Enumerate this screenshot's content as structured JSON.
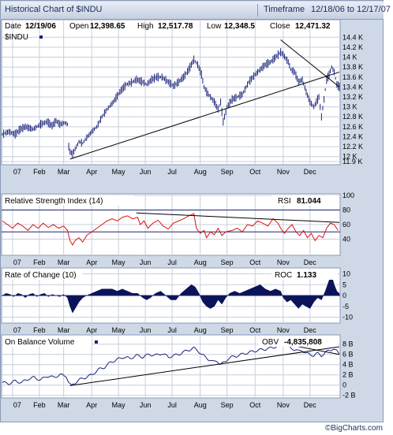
{
  "header": {
    "title": "Historical Chart of $INDU",
    "timeframe_label": "Timeframe",
    "timeframe_value": "12/18/06 to 12/17/07"
  },
  "quote": {
    "date_label": "Date",
    "date": "12/19/06",
    "open_label": "Open",
    "open": "12,398.65",
    "high_label": "High",
    "high": "12,517.78",
    "low_label": "Low",
    "low": "12,348.5",
    "close_label": "Close",
    "close": "12,471.32"
  },
  "credit": "©BigCharts.com",
  "colors": {
    "price": "#1a2378",
    "rsi": "#dd1111",
    "fill": "#0b1458",
    "obv": "#1a2378",
    "trend": "#000000",
    "grid": "#c7cedb",
    "panel_bg": "#ffffff",
    "frame": "#cfd8e6"
  },
  "chart_data": [
    {
      "type": "ohlc",
      "title": "$INDU",
      "ylim": [
        11900,
        14500
      ],
      "y_ticks": [
        "14.4 K",
        "14.2 K",
        "14 K",
        "13.8 K",
        "13.6 K",
        "13.4 K",
        "13.2 K",
        "13 K",
        "12.8 K",
        "12.6 K",
        "12.4 K",
        "12.2 K",
        "12 K",
        "11.9 K"
      ],
      "x_ticks": [
        "07",
        "Feb",
        "Mar",
        "Apr",
        "May",
        "Jun",
        "Jul",
        "Aug",
        "Sep",
        "Oct",
        "Nov",
        "Dec"
      ],
      "close_path": [
        [
          0,
          12450
        ],
        [
          5,
          12500
        ],
        [
          10,
          12450
        ],
        [
          14,
          12550
        ],
        [
          18,
          12600
        ],
        [
          24,
          12550
        ],
        [
          30,
          12650
        ],
        [
          35,
          12700
        ],
        [
          39,
          12620
        ],
        [
          42,
          12720
        ],
        [
          45,
          12650
        ],
        [
          49,
          12680
        ],
        [
          51,
          12650
        ],
        [
          52,
          12200
        ],
        [
          53,
          12100
        ],
        [
          55,
          12050
        ],
        [
          57,
          12150
        ],
        [
          60,
          12300
        ],
        [
          63,
          12270
        ],
        [
          66,
          12380
        ],
        [
          70,
          12500
        ],
        [
          74,
          12600
        ],
        [
          78,
          12800
        ],
        [
          82,
          12950
        ],
        [
          87,
          13100
        ],
        [
          92,
          13300
        ],
        [
          97,
          13450
        ],
        [
          102,
          13500
        ],
        [
          105,
          13550
        ],
        [
          110,
          13500
        ],
        [
          113,
          13450
        ],
        [
          117,
          13550
        ],
        [
          121,
          13600
        ],
        [
          125,
          13600
        ],
        [
          130,
          13500
        ],
        [
          134,
          13420
        ],
        [
          138,
          13500
        ],
        [
          142,
          13600
        ],
        [
          146,
          13750
        ],
        [
          150,
          13950
        ],
        [
          153,
          13850
        ],
        [
          156,
          13650
        ],
        [
          158,
          13400
        ],
        [
          160,
          13300
        ],
        [
          163,
          13200
        ],
        [
          166,
          13100
        ],
        [
          169,
          12950
        ],
        [
          171,
          13100
        ],
        [
          173,
          12700
        ],
        [
          176,
          13000
        ],
        [
          180,
          13150
        ],
        [
          184,
          13200
        ],
        [
          188,
          13250
        ],
        [
          193,
          13500
        ],
        [
          198,
          13650
        ],
        [
          202,
          13750
        ],
        [
          206,
          13850
        ],
        [
          210,
          13900
        ],
        [
          214,
          14000
        ],
        [
          218,
          14100
        ],
        [
          220,
          14050
        ],
        [
          224,
          13900
        ],
        [
          226,
          13750
        ],
        [
          229,
          13700
        ],
        [
          232,
          13500
        ],
        [
          235,
          13550
        ],
        [
          238,
          13300
        ],
        [
          241,
          13100
        ],
        [
          244,
          13000
        ],
        [
          248,
          13200
        ],
        [
          250,
          12800
        ],
        [
          252,
          13150
        ],
        [
          254,
          13550
        ],
        [
          256,
          13650
        ],
        [
          258,
          13800
        ],
        [
          260,
          13700
        ],
        [
          262,
          13450
        ],
        [
          264,
          13400
        ]
      ],
      "trendlines": [
        {
          "from": [
            53,
            11950
          ],
          "to": [
            264,
            13700
          ]
        },
        {
          "from": [
            218,
            14350
          ],
          "to": [
            264,
            13400
          ]
        }
      ]
    },
    {
      "type": "line",
      "title": "Relative Strength Index (14)",
      "value_label": "RSI",
      "value": "81.044",
      "ylim": [
        20,
        100
      ],
      "y_ticks": [
        100,
        80,
        60,
        40
      ],
      "reference_lines": [
        80,
        50
      ],
      "points": [
        [
          0,
          65
        ],
        [
          4,
          60
        ],
        [
          8,
          55
        ],
        [
          12,
          62
        ],
        [
          16,
          58
        ],
        [
          20,
          52
        ],
        [
          24,
          60
        ],
        [
          28,
          55
        ],
        [
          32,
          62
        ],
        [
          36,
          56
        ],
        [
          40,
          60
        ],
        [
          44,
          55
        ],
        [
          48,
          58
        ],
        [
          51,
          52
        ],
        [
          53,
          38
        ],
        [
          55,
          32
        ],
        [
          57,
          38
        ],
        [
          60,
          42
        ],
        [
          63,
          36
        ],
        [
          66,
          45
        ],
        [
          70,
          50
        ],
        [
          74,
          55
        ],
        [
          78,
          60
        ],
        [
          82,
          65
        ],
        [
          86,
          68
        ],
        [
          90,
          65
        ],
        [
          94,
          70
        ],
        [
          98,
          72
        ],
        [
          102,
          68
        ],
        [
          106,
          70
        ],
        [
          108,
          60
        ],
        [
          111,
          65
        ],
        [
          114,
          55
        ],
        [
          118,
          62
        ],
        [
          122,
          66
        ],
        [
          126,
          58
        ],
        [
          130,
          54
        ],
        [
          134,
          62
        ],
        [
          138,
          65
        ],
        [
          142,
          68
        ],
        [
          146,
          72
        ],
        [
          150,
          75
        ],
        [
          152,
          55
        ],
        [
          155,
          48
        ],
        [
          158,
          52
        ],
        [
          160,
          42
        ],
        [
          163,
          50
        ],
        [
          166,
          46
        ],
        [
          169,
          55
        ],
        [
          172,
          45
        ],
        [
          175,
          50
        ],
        [
          180,
          52
        ],
        [
          184,
          55
        ],
        [
          188,
          50
        ],
        [
          192,
          60
        ],
        [
          196,
          58
        ],
        [
          200,
          65
        ],
        [
          204,
          62
        ],
        [
          208,
          58
        ],
        [
          212,
          68
        ],
        [
          216,
          62
        ],
        [
          218,
          55
        ],
        [
          221,
          48
        ],
        [
          224,
          55
        ],
        [
          227,
          60
        ],
        [
          230,
          50
        ],
        [
          233,
          45
        ],
        [
          236,
          52
        ],
        [
          239,
          42
        ],
        [
          242,
          48
        ],
        [
          245,
          38
        ],
        [
          248,
          45
        ],
        [
          251,
          42
        ],
        [
          254,
          55
        ],
        [
          257,
          62
        ],
        [
          260,
          60
        ],
        [
          263,
          52
        ]
      ],
      "trendlines": [
        {
          "from": [
            105,
            76
          ],
          "to": [
            264,
            63
          ]
        }
      ]
    },
    {
      "type": "area",
      "title": "Rate of Change (10)",
      "value_label": "ROC",
      "value": "1.133",
      "ylim": [
        -12,
        12
      ],
      "y_ticks": [
        10,
        5,
        0,
        -5,
        -10
      ],
      "points": [
        [
          0,
          0
        ],
        [
          3,
          1
        ],
        [
          6,
          0.5
        ],
        [
          9,
          -0.5
        ],
        [
          12,
          1
        ],
        [
          15,
          0.5
        ],
        [
          18,
          -1
        ],
        [
          21,
          0.5
        ],
        [
          24,
          1
        ],
        [
          27,
          -0.5
        ],
        [
          30,
          0.5
        ],
        [
          33,
          1
        ],
        [
          36,
          -0.5
        ],
        [
          39,
          0.5
        ],
        [
          42,
          0
        ],
        [
          45,
          -0.5
        ],
        [
          48,
          0.5
        ],
        [
          51,
          -1
        ],
        [
          53,
          -5
        ],
        [
          55,
          -8
        ],
        [
          57,
          -6
        ],
        [
          60,
          -3
        ],
        [
          63,
          -1
        ],
        [
          66,
          0
        ],
        [
          70,
          1
        ],
        [
          74,
          2
        ],
        [
          78,
          3
        ],
        [
          82,
          3
        ],
        [
          86,
          3
        ],
        [
          90,
          2
        ],
        [
          94,
          3
        ],
        [
          98,
          2
        ],
        [
          102,
          1
        ],
        [
          106,
          1
        ],
        [
          110,
          -1
        ],
        [
          113,
          -2
        ],
        [
          116,
          -1
        ],
        [
          120,
          1
        ],
        [
          124,
          2
        ],
        [
          128,
          0
        ],
        [
          132,
          -2
        ],
        [
          136,
          -2
        ],
        [
          140,
          1
        ],
        [
          144,
          3
        ],
        [
          148,
          5
        ],
        [
          151,
          4
        ],
        [
          154,
          1
        ],
        [
          157,
          -3
        ],
        [
          160,
          -5
        ],
        [
          163,
          -6
        ],
        [
          166,
          -5
        ],
        [
          169,
          -2
        ],
        [
          172,
          -4
        ],
        [
          175,
          -1
        ],
        [
          178,
          1
        ],
        [
          182,
          2
        ],
        [
          186,
          1
        ],
        [
          190,
          2
        ],
        [
          194,
          3
        ],
        [
          198,
          4
        ],
        [
          202,
          5
        ],
        [
          206,
          3
        ],
        [
          210,
          2
        ],
        [
          214,
          3
        ],
        [
          218,
          2
        ],
        [
          220,
          -1
        ],
        [
          223,
          -3
        ],
        [
          226,
          -2
        ],
        [
          229,
          -4
        ],
        [
          232,
          -6
        ],
        [
          235,
          -4
        ],
        [
          238,
          -5
        ],
        [
          241,
          -6
        ],
        [
          244,
          -3
        ],
        [
          247,
          -1
        ],
        [
          250,
          -2
        ],
        [
          253,
          2
        ],
        [
          256,
          7
        ],
        [
          258,
          9
        ],
        [
          260,
          5
        ],
        [
          262,
          2
        ],
        [
          264,
          1
        ]
      ]
    },
    {
      "type": "line",
      "title": "On Balance Volume",
      "value_label": "OBV",
      "value": "-4,835,808",
      "ylim": [
        -2.2,
        9.5
      ],
      "y_ticks": [
        "8 B",
        "6 B",
        "4 B",
        "2 B",
        "0",
        "-2 B"
      ],
      "points": [
        [
          0,
          0.5
        ],
        [
          5,
          0.3
        ],
        [
          10,
          0.8
        ],
        [
          15,
          0.5
        ],
        [
          20,
          1.2
        ],
        [
          25,
          1.5
        ],
        [
          30,
          1
        ],
        [
          35,
          1.8
        ],
        [
          40,
          1.5
        ],
        [
          45,
          2
        ],
        [
          50,
          1.8
        ],
        [
          52,
          0.5
        ],
        [
          54,
          -0.2
        ],
        [
          56,
          0.3
        ],
        [
          60,
          1
        ],
        [
          65,
          1.5
        ],
        [
          70,
          2
        ],
        [
          75,
          3
        ],
        [
          80,
          3.5
        ],
        [
          85,
          4.5
        ],
        [
          90,
          5
        ],
        [
          95,
          5.5
        ],
        [
          100,
          5.2
        ],
        [
          105,
          5.8
        ],
        [
          110,
          5.5
        ],
        [
          115,
          6
        ],
        [
          120,
          5.8
        ],
        [
          125,
          6.2
        ],
        [
          130,
          5.5
        ],
        [
          135,
          5.8
        ],
        [
          140,
          6.2
        ],
        [
          145,
          6.8
        ],
        [
          150,
          7.2
        ],
        [
          153,
          6.8
        ],
        [
          156,
          6
        ],
        [
          159,
          5.5
        ],
        [
          162,
          5
        ],
        [
          165,
          4.5
        ],
        [
          168,
          4.8
        ],
        [
          171,
          4
        ],
        [
          174,
          4.5
        ],
        [
          177,
          5.2
        ],
        [
          180,
          5.5
        ],
        [
          185,
          5.8
        ],
        [
          190,
          6.2
        ],
        [
          195,
          6.5
        ],
        [
          200,
          6.8
        ],
        [
          205,
          7
        ],
        [
          210,
          7.2
        ],
        [
          215,
          7.6
        ],
        [
          220,
          8
        ],
        [
          223,
          7.8
        ],
        [
          226,
          7.2
        ],
        [
          229,
          7
        ],
        [
          232,
          6.6
        ],
        [
          235,
          6.8
        ],
        [
          238,
          6.2
        ],
        [
          241,
          6
        ],
        [
          244,
          5.8
        ],
        [
          247,
          6.2
        ],
        [
          250,
          5.8
        ],
        [
          253,
          6.3
        ],
        [
          256,
          6.8
        ],
        [
          259,
          7.1
        ],
        [
          262,
          6.6
        ],
        [
          264,
          6.2
        ]
      ],
      "trendlines": [
        {
          "from": [
            53,
            -0.1
          ],
          "to": [
            264,
            7.5
          ]
        },
        {
          "from": [
            218,
            8.2
          ],
          "to": [
            264,
            6.0
          ]
        }
      ]
    }
  ]
}
